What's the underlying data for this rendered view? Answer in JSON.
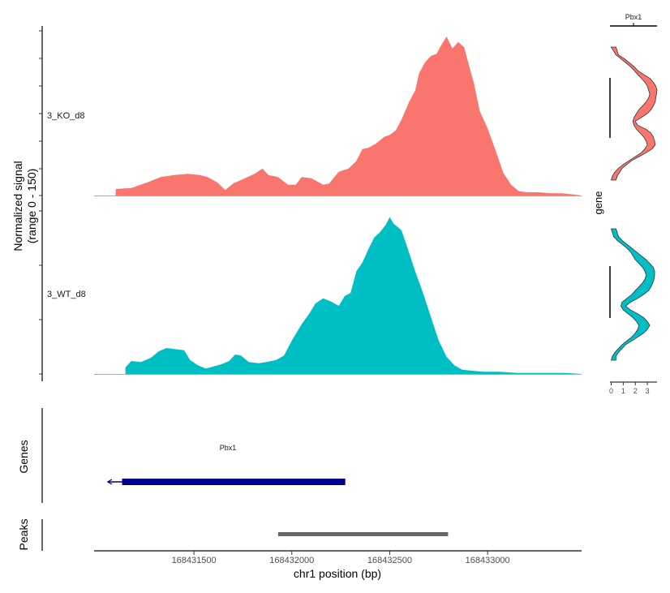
{
  "chart_data": {
    "type": "area",
    "xlabel": "chr1 position (bp)",
    "ylabel_line1": "Normalized signal",
    "ylabel_line2": "(range 0 - 150)",
    "xlim": [
      168430990,
      168433480
    ],
    "ylim": [
      0,
      150
    ],
    "x_ticks": [
      168431500,
      168432000,
      168432500,
      168433000
    ],
    "x_tick_labels": [
      "168431500",
      "168432000",
      "168432500",
      "168433000"
    ],
    "series": [
      {
        "name": "3_KO_d8",
        "color": "#F8766D",
        "points": [
          [
            168431100,
            0
          ],
          [
            168431100,
            6
          ],
          [
            168431180,
            7
          ],
          [
            168431260,
            12
          ],
          [
            168431330,
            17
          ],
          [
            168431400,
            19
          ],
          [
            168431470,
            20
          ],
          [
            168431530,
            19
          ],
          [
            168431570,
            17
          ],
          [
            168431620,
            12
          ],
          [
            168431660,
            5
          ],
          [
            168431700,
            11
          ],
          [
            168431760,
            16
          ],
          [
            168431810,
            20
          ],
          [
            168431850,
            25
          ],
          [
            168431880,
            19
          ],
          [
            168431930,
            17
          ],
          [
            168431980,
            10
          ],
          [
            168432020,
            10
          ],
          [
            168432050,
            17
          ],
          [
            168432100,
            16
          ],
          [
            168432160,
            10
          ],
          [
            168432190,
            11
          ],
          [
            168432240,
            22
          ],
          [
            168432290,
            25
          ],
          [
            168432330,
            32
          ],
          [
            168432360,
            43
          ],
          [
            168432390,
            44
          ],
          [
            168432430,
            48
          ],
          [
            168432470,
            54
          ],
          [
            168432500,
            56
          ],
          [
            168432530,
            60
          ],
          [
            168432560,
            70
          ],
          [
            168432600,
            87
          ],
          [
            168432630,
            97
          ],
          [
            168432650,
            113
          ],
          [
            168432680,
            123
          ],
          [
            168432710,
            129
          ],
          [
            168432740,
            131
          ],
          [
            168432760,
            138
          ],
          [
            168432790,
            147
          ],
          [
            168432820,
            136
          ],
          [
            168432850,
            142
          ],
          [
            168432880,
            137
          ],
          [
            168432910,
            117
          ],
          [
            168432930,
            104
          ],
          [
            168432960,
            78
          ],
          [
            168433000,
            62
          ],
          [
            168433040,
            42
          ],
          [
            168433080,
            21
          ],
          [
            168433120,
            10
          ],
          [
            168433160,
            4
          ],
          [
            168433200,
            3
          ],
          [
            168433260,
            3
          ],
          [
            168433320,
            2
          ],
          [
            168433380,
            2
          ],
          [
            168433440,
            1
          ],
          [
            168433480,
            0
          ]
        ]
      },
      {
        "name": "3_WT_d8",
        "color": "#00BFC4",
        "points": [
          [
            168431150,
            0
          ],
          [
            168431150,
            6
          ],
          [
            168431180,
            12
          ],
          [
            168431230,
            11
          ],
          [
            168431280,
            15
          ],
          [
            168431320,
            21
          ],
          [
            168431360,
            24
          ],
          [
            168431400,
            23
          ],
          [
            168431450,
            22
          ],
          [
            168431480,
            13
          ],
          [
            168431520,
            8
          ],
          [
            168431560,
            5
          ],
          [
            168431600,
            7
          ],
          [
            168431640,
            9
          ],
          [
            168431680,
            12
          ],
          [
            168431710,
            18
          ],
          [
            168431740,
            17
          ],
          [
            168431780,
            11
          ],
          [
            168431830,
            10
          ],
          [
            168431870,
            11
          ],
          [
            168431920,
            13
          ],
          [
            168431960,
            17
          ],
          [
            168432000,
            31
          ],
          [
            168432050,
            46
          ],
          [
            168432090,
            56
          ],
          [
            168432120,
            65
          ],
          [
            168432160,
            70
          ],
          [
            168432200,
            67
          ],
          [
            168432240,
            63
          ],
          [
            168432270,
            72
          ],
          [
            168432300,
            75
          ],
          [
            168432330,
            95
          ],
          [
            168432360,
            103
          ],
          [
            168432390,
            115
          ],
          [
            168432420,
            126
          ],
          [
            168432450,
            131
          ],
          [
            168432480,
            138
          ],
          [
            168432500,
            145
          ],
          [
            168432520,
            139
          ],
          [
            168432560,
            133
          ],
          [
            168432590,
            117
          ],
          [
            168432630,
            95
          ],
          [
            168432670,
            75
          ],
          [
            168432710,
            53
          ],
          [
            168432750,
            31
          ],
          [
            168432790,
            16
          ],
          [
            168432830,
            8
          ],
          [
            168432870,
            4
          ],
          [
            168432920,
            3
          ],
          [
            168432980,
            2
          ],
          [
            168433060,
            2
          ],
          [
            168433150,
            1
          ],
          [
            168433250,
            1
          ],
          [
            168433400,
            1
          ],
          [
            168433480,
            0
          ]
        ]
      }
    ],
    "violin": {
      "gene": "Pbx1",
      "ylabel": "gene",
      "x_ticks": [
        0,
        1,
        2,
        3
      ],
      "x_tick_labels": [
        "0",
        "1",
        "2",
        "3"
      ],
      "xlim": [
        -0.1,
        3.8
      ],
      "KO": [
        [
          0.0,
          0.4
        ],
        [
          0.2,
          0.5
        ],
        [
          0.4,
          0.6
        ],
        [
          0.8,
          1.1
        ],
        [
          1.2,
          1.5
        ],
        [
          1.6,
          1.9
        ],
        [
          1.9,
          2.2
        ],
        [
          2.2,
          2.7
        ],
        [
          2.5,
          3.2
        ],
        [
          2.8,
          3.5
        ],
        [
          3.0,
          3.7
        ],
        [
          3.1,
          3.8
        ],
        [
          3.2,
          3.75
        ],
        [
          3.1,
          3.7
        ],
        [
          2.9,
          3.65
        ],
        [
          2.6,
          3.5
        ],
        [
          2.3,
          3.3
        ],
        [
          2.1,
          3.0
        ],
        [
          1.9,
          2.5
        ],
        [
          1.8,
          2.0
        ],
        [
          1.9,
          2.2
        ],
        [
          2.1,
          2.9
        ],
        [
          2.4,
          3.3
        ],
        [
          2.7,
          3.5
        ],
        [
          2.9,
          3.6
        ],
        [
          3.0,
          3.65
        ],
        [
          2.8,
          3.4
        ],
        [
          2.5,
          2.9
        ],
        [
          2.0,
          2.3
        ],
        [
          1.5,
          1.7
        ],
        [
          1.0,
          1.3
        ],
        [
          0.6,
          0.9
        ],
        [
          0.3,
          0.7
        ],
        [
          0.1,
          0.5
        ],
        [
          0.0,
          0.4
        ]
      ],
      "WT": [
        [
          0.0,
          0.4
        ],
        [
          0.1,
          0.5
        ],
        [
          0.2,
          0.6
        ],
        [
          0.5,
          0.9
        ],
        [
          0.9,
          1.3
        ],
        [
          1.3,
          1.7
        ],
        [
          1.6,
          2.1
        ],
        [
          1.8,
          2.5
        ],
        [
          2.0,
          2.9
        ],
        [
          2.3,
          3.2
        ],
        [
          2.6,
          3.5
        ],
        [
          2.8,
          3.6
        ],
        [
          2.9,
          3.6
        ],
        [
          2.8,
          3.55
        ],
        [
          2.6,
          3.45
        ],
        [
          2.3,
          3.3
        ],
        [
          2.0,
          3.1
        ],
        [
          1.7,
          2.7
        ],
        [
          1.3,
          2.2
        ],
        [
          0.9,
          1.6
        ],
        [
          0.8,
          1.2
        ],
        [
          1.0,
          1.6
        ],
        [
          1.4,
          2.2
        ],
        [
          1.8,
          2.7
        ],
        [
          2.1,
          3.0
        ],
        [
          2.3,
          3.2
        ],
        [
          2.2,
          3.0
        ],
        [
          2.0,
          2.7
        ],
        [
          1.7,
          2.2
        ],
        [
          1.3,
          1.7
        ],
        [
          0.9,
          1.2
        ],
        [
          0.6,
          0.9
        ],
        [
          0.3,
          0.6
        ],
        [
          0.1,
          0.4
        ],
        [
          0.0,
          0.4
        ]
      ]
    },
    "genes": {
      "title": "Genes",
      "gene_name": "Pbx1",
      "start": 168431060,
      "end": 168432273,
      "thick_start": 168431133,
      "strand": "-",
      "color": "#00008B"
    },
    "peaks": {
      "title": "Peaks",
      "start": 168431930,
      "end": 168432798,
      "color": "#666666"
    }
  }
}
